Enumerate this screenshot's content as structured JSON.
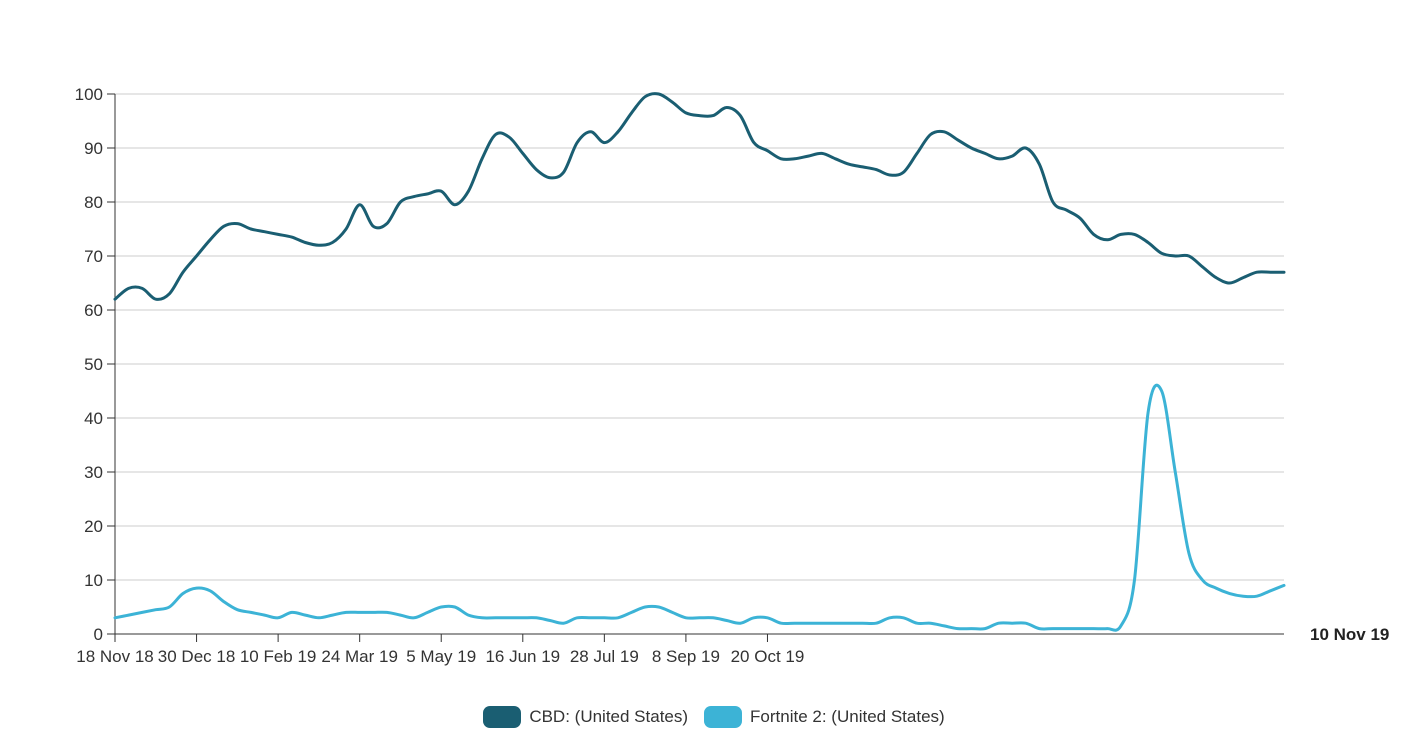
{
  "chart_data": {
    "type": "line",
    "ylim": [
      0,
      100
    ],
    "yticks": [
      0,
      10,
      20,
      30,
      40,
      50,
      60,
      70,
      80,
      90,
      100
    ],
    "xtick_labels": [
      "18 Nov 18",
      "30 Dec 18",
      "10 Feb 19",
      "24 Mar 19",
      "5 May 19",
      "16 Jun 19",
      "28 Jul 19",
      "8 Sep 19",
      "20 Oct 19"
    ],
    "end_label": "10 Nov 19",
    "grid": true,
    "legend_position": "bottom-center",
    "series": [
      {
        "name": "CBD: (United States)",
        "color": "#1a5e72",
        "values": [
          62,
          64,
          64,
          62,
          63,
          67,
          70,
          73,
          75.5,
          76,
          75,
          74.5,
          74,
          73.5,
          72.5,
          72,
          72.5,
          75,
          79.5,
          75.5,
          76,
          80,
          81,
          81.5,
          82,
          79.5,
          82,
          88,
          92.5,
          92,
          89,
          86,
          84.5,
          85.5,
          91,
          93,
          91,
          93,
          96.5,
          99.5,
          100,
          98.5,
          96.5,
          96,
          96,
          97.5,
          96,
          91,
          89.5,
          88,
          88,
          88.5,
          89,
          88,
          87,
          86.5,
          86,
          85,
          85.5,
          89,
          92.5,
          93,
          91.5,
          90,
          89,
          88,
          88.5,
          90,
          87,
          80,
          78.5,
          77,
          74,
          73,
          74,
          74,
          72.5,
          70.5,
          70,
          70,
          68,
          66,
          65,
          66,
          67,
          67,
          67
        ]
      },
      {
        "name": "Fortnite 2: (United States)",
        "color": "#3cb3d6",
        "values": [
          3,
          3.5,
          4,
          4.5,
          5,
          7.5,
          8.5,
          8,
          6,
          4.5,
          4,
          3.5,
          3,
          4,
          3.5,
          3,
          3.5,
          4,
          4,
          4,
          4,
          3.5,
          3,
          4,
          5,
          5,
          3.5,
          3,
          3,
          3,
          3,
          3,
          2.5,
          2,
          3,
          3,
          3,
          3,
          4,
          5,
          5,
          4,
          3,
          3,
          3,
          2.5,
          2,
          3,
          3,
          2,
          2,
          2,
          2,
          2,
          2,
          2,
          2,
          3,
          3,
          2,
          2,
          1.5,
          1,
          1,
          1,
          2,
          2,
          2,
          1,
          1,
          1,
          1,
          1,
          1,
          1.5,
          10,
          41,
          45,
          30,
          15,
          10,
          8.5,
          7.5,
          7,
          7,
          8,
          9
        ]
      }
    ]
  }
}
